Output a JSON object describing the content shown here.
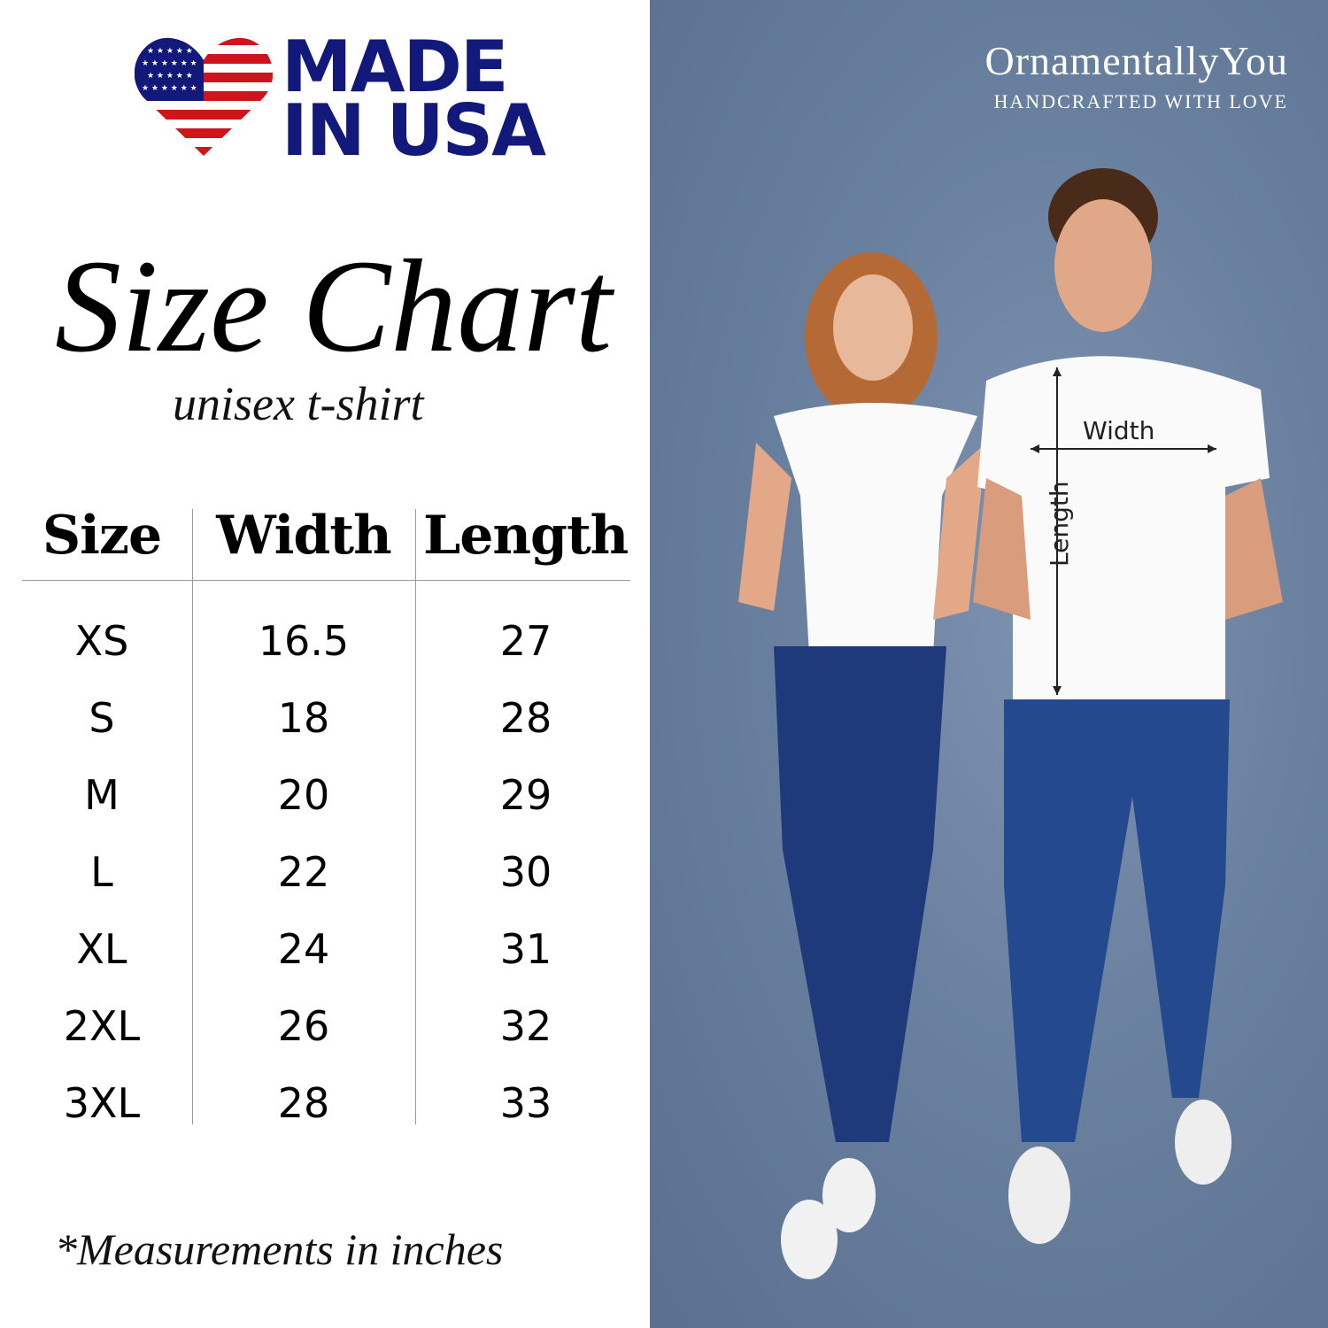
{
  "badge": {
    "line1": "MADE",
    "line2": "IN USA",
    "colors": {
      "navy": "#13197a",
      "red": "#d0141c"
    }
  },
  "title": "Size Chart",
  "subtitle": "unisex t-shirt",
  "table": {
    "headers": [
      "Size",
      "Width",
      "Length"
    ],
    "rows": [
      [
        "XS",
        "16.5",
        "27"
      ],
      [
        "S",
        "18",
        "28"
      ],
      [
        "M",
        "20",
        "29"
      ],
      [
        "L",
        "22",
        "30"
      ],
      [
        "XL",
        "24",
        "31"
      ],
      [
        "2XL",
        "26",
        "32"
      ],
      [
        "3XL",
        "28",
        "33"
      ]
    ]
  },
  "footnote": "*Measurements in inches",
  "brand": {
    "name": "OrnamentallyYou",
    "tagline": "HANDCRAFTED WITH LOVE"
  },
  "photo": {
    "width_label": "Width",
    "length_label": "Length"
  }
}
